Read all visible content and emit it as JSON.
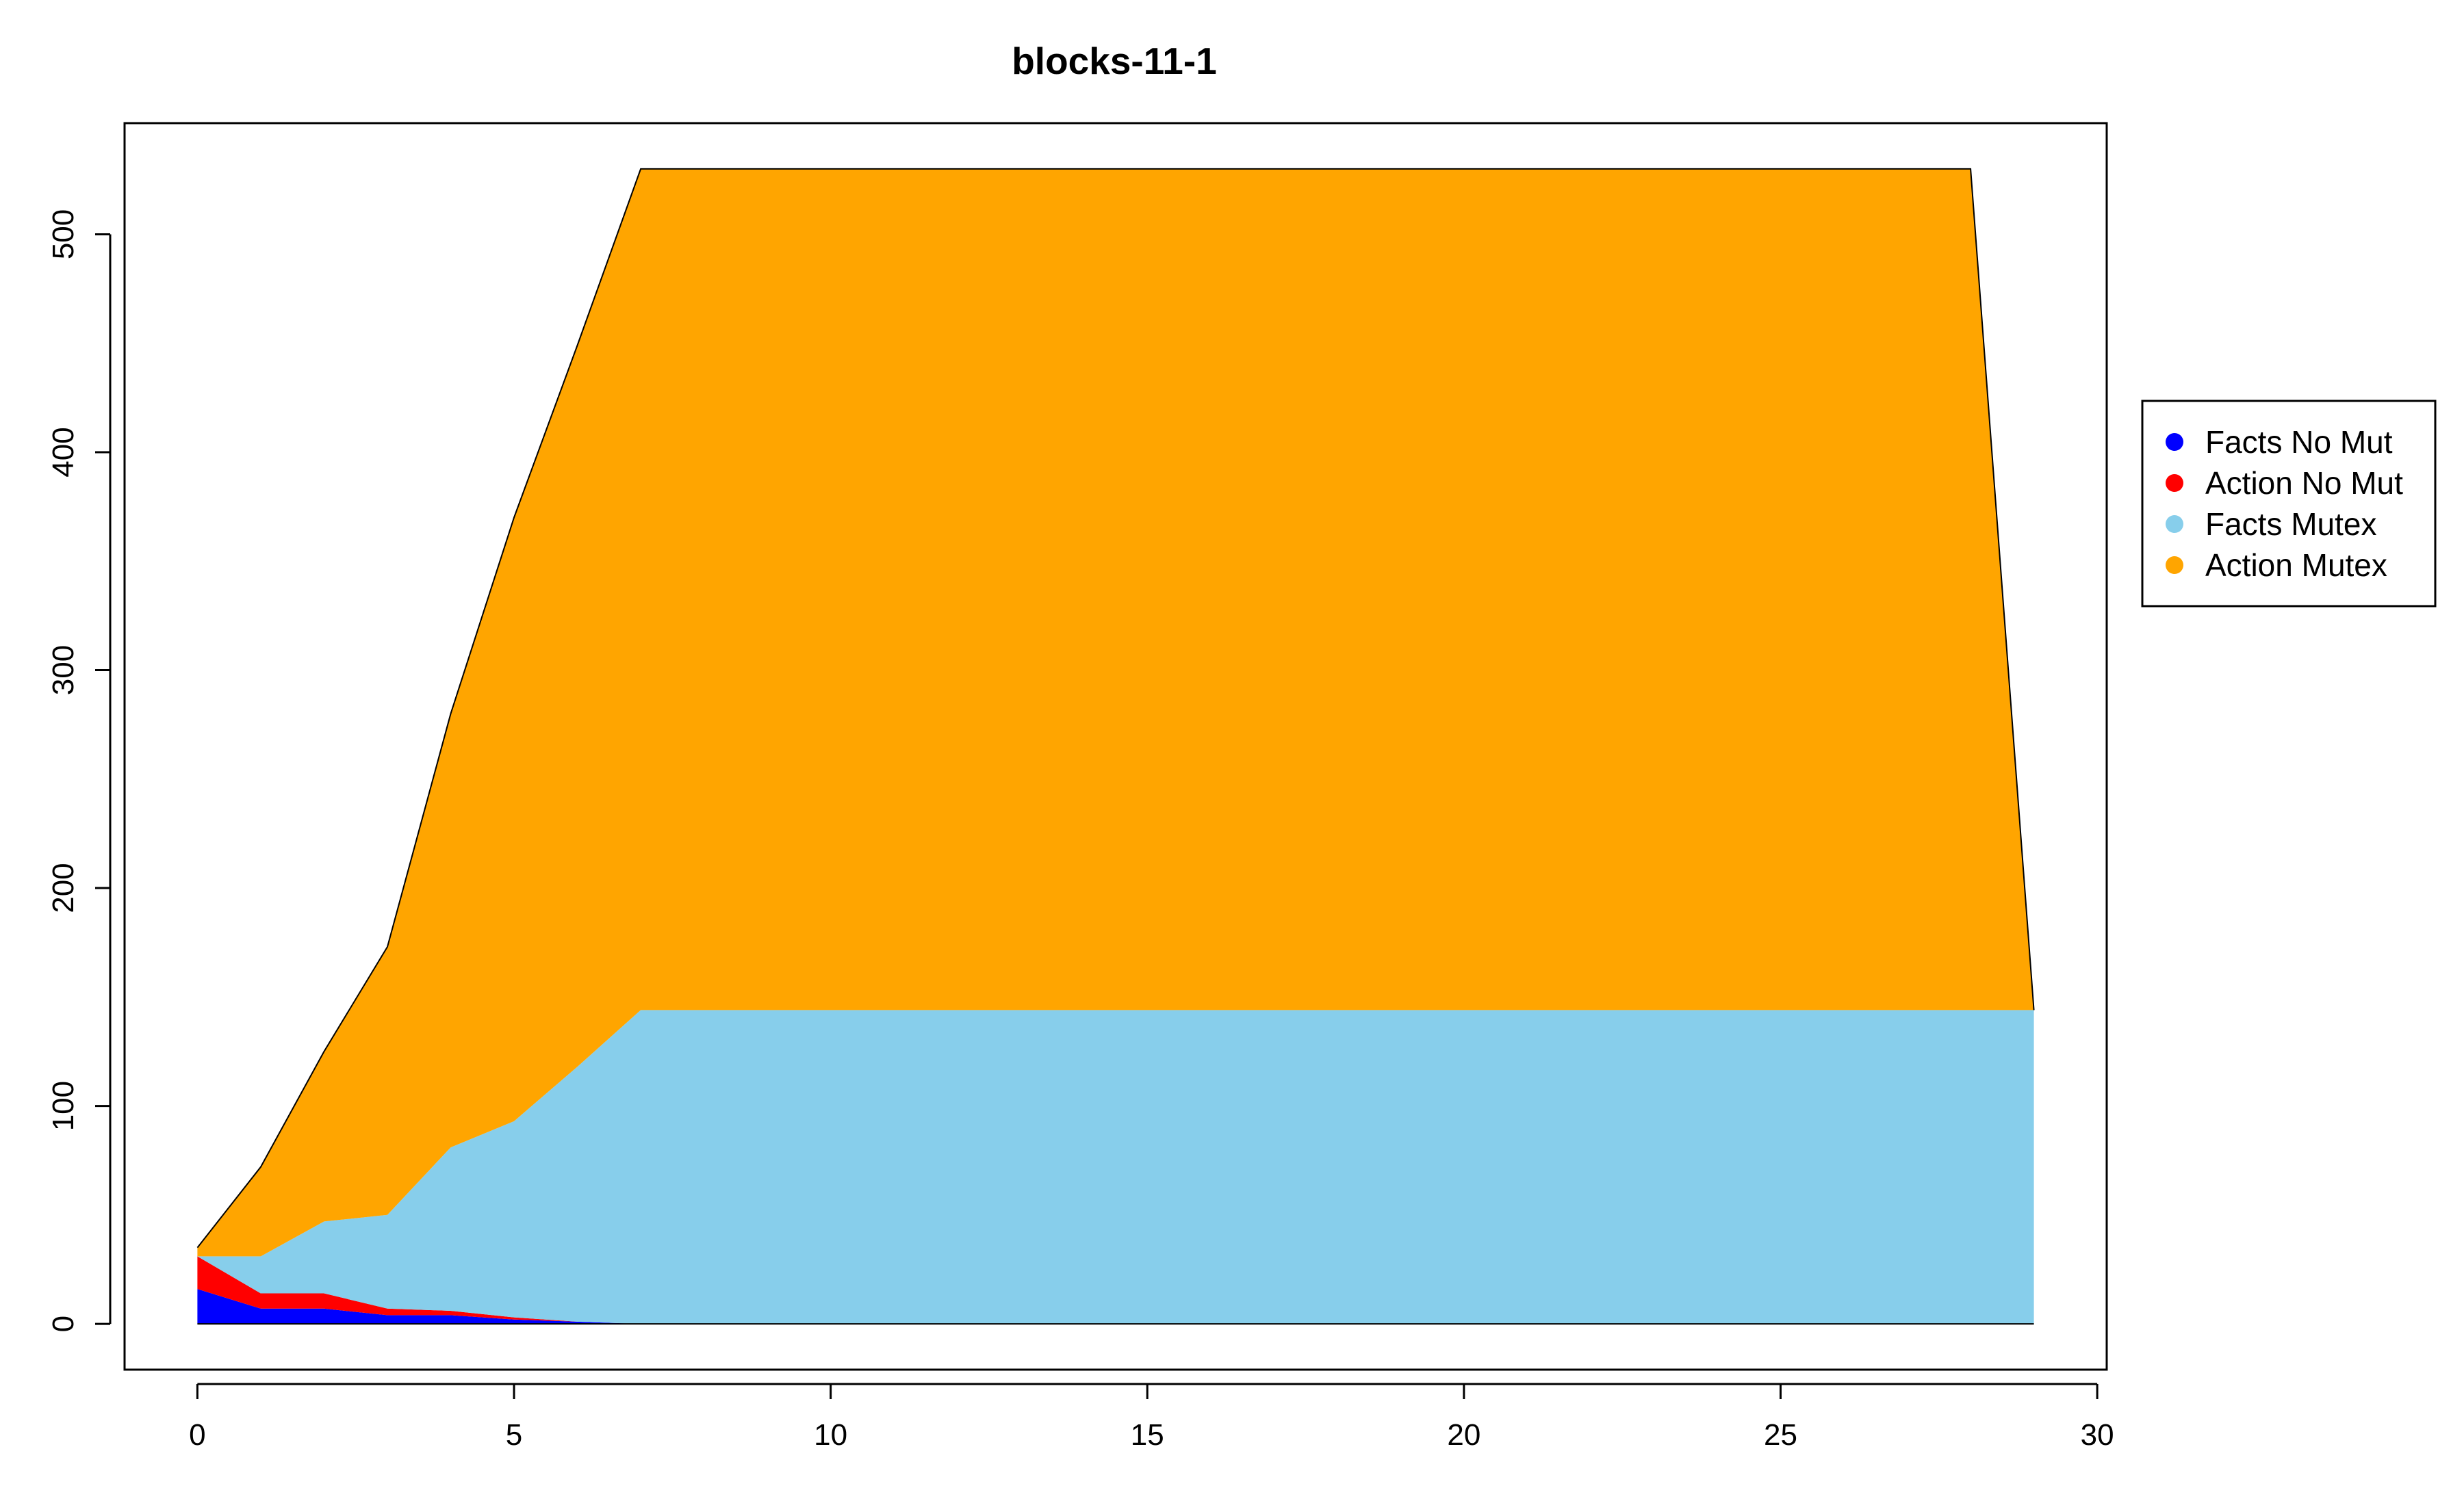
{
  "chart_data": {
    "type": "area",
    "title": "blocks-11-1",
    "xlabel": "",
    "ylabel": "",
    "xlim": [
      -1.15,
      30.15
    ],
    "ylim": [
      -21,
      551
    ],
    "xticks": [
      0,
      5,
      10,
      15,
      20,
      25,
      30
    ],
    "yticks": [
      0,
      100,
      200,
      300,
      400,
      500
    ],
    "stacked": true,
    "grid": false,
    "legend_position": "right",
    "x": [
      0,
      1,
      2,
      3,
      4,
      5,
      6,
      7,
      8,
      9,
      10,
      11,
      12,
      13,
      14,
      15,
      16,
      17,
      18,
      19,
      20,
      21,
      22,
      23,
      24,
      25,
      26,
      27,
      28,
      29
    ],
    "series": [
      {
        "name": "Facts No Mut",
        "color": "#0000FF",
        "values": [
          16,
          7,
          7,
          4,
          4,
          2,
          1,
          0,
          0,
          0,
          0,
          0,
          0,
          0,
          0,
          0,
          0,
          0,
          0,
          0,
          0,
          0,
          0,
          0,
          0,
          0,
          0,
          0,
          0,
          0
        ]
      },
      {
        "name": "Action No Mut",
        "color": "#FF0000",
        "values": [
          15,
          7,
          7,
          3,
          2,
          1,
          0,
          0,
          0,
          0,
          0,
          0,
          0,
          0,
          0,
          0,
          0,
          0,
          0,
          0,
          0,
          0,
          0,
          0,
          0,
          0,
          0,
          0,
          0,
          0
        ]
      },
      {
        "name": "Facts Mutex",
        "color": "#87CEEB",
        "values": [
          0,
          17,
          33,
          43,
          75,
          90,
          117,
          144,
          144,
          144,
          144,
          144,
          144,
          144,
          144,
          144,
          144,
          144,
          144,
          144,
          144,
          144,
          144,
          144,
          144,
          144,
          144,
          144,
          144,
          144
        ]
      },
      {
        "name": "Action Mutex",
        "color": "#FFA500",
        "values": [
          4,
          41,
          78,
          123,
          199,
          277,
          331,
          386,
          386,
          386,
          386,
          386,
          386,
          386,
          386,
          386,
          386,
          386,
          386,
          386,
          386,
          386,
          386,
          386,
          386,
          386,
          386,
          386,
          386,
          0
        ]
      }
    ]
  }
}
